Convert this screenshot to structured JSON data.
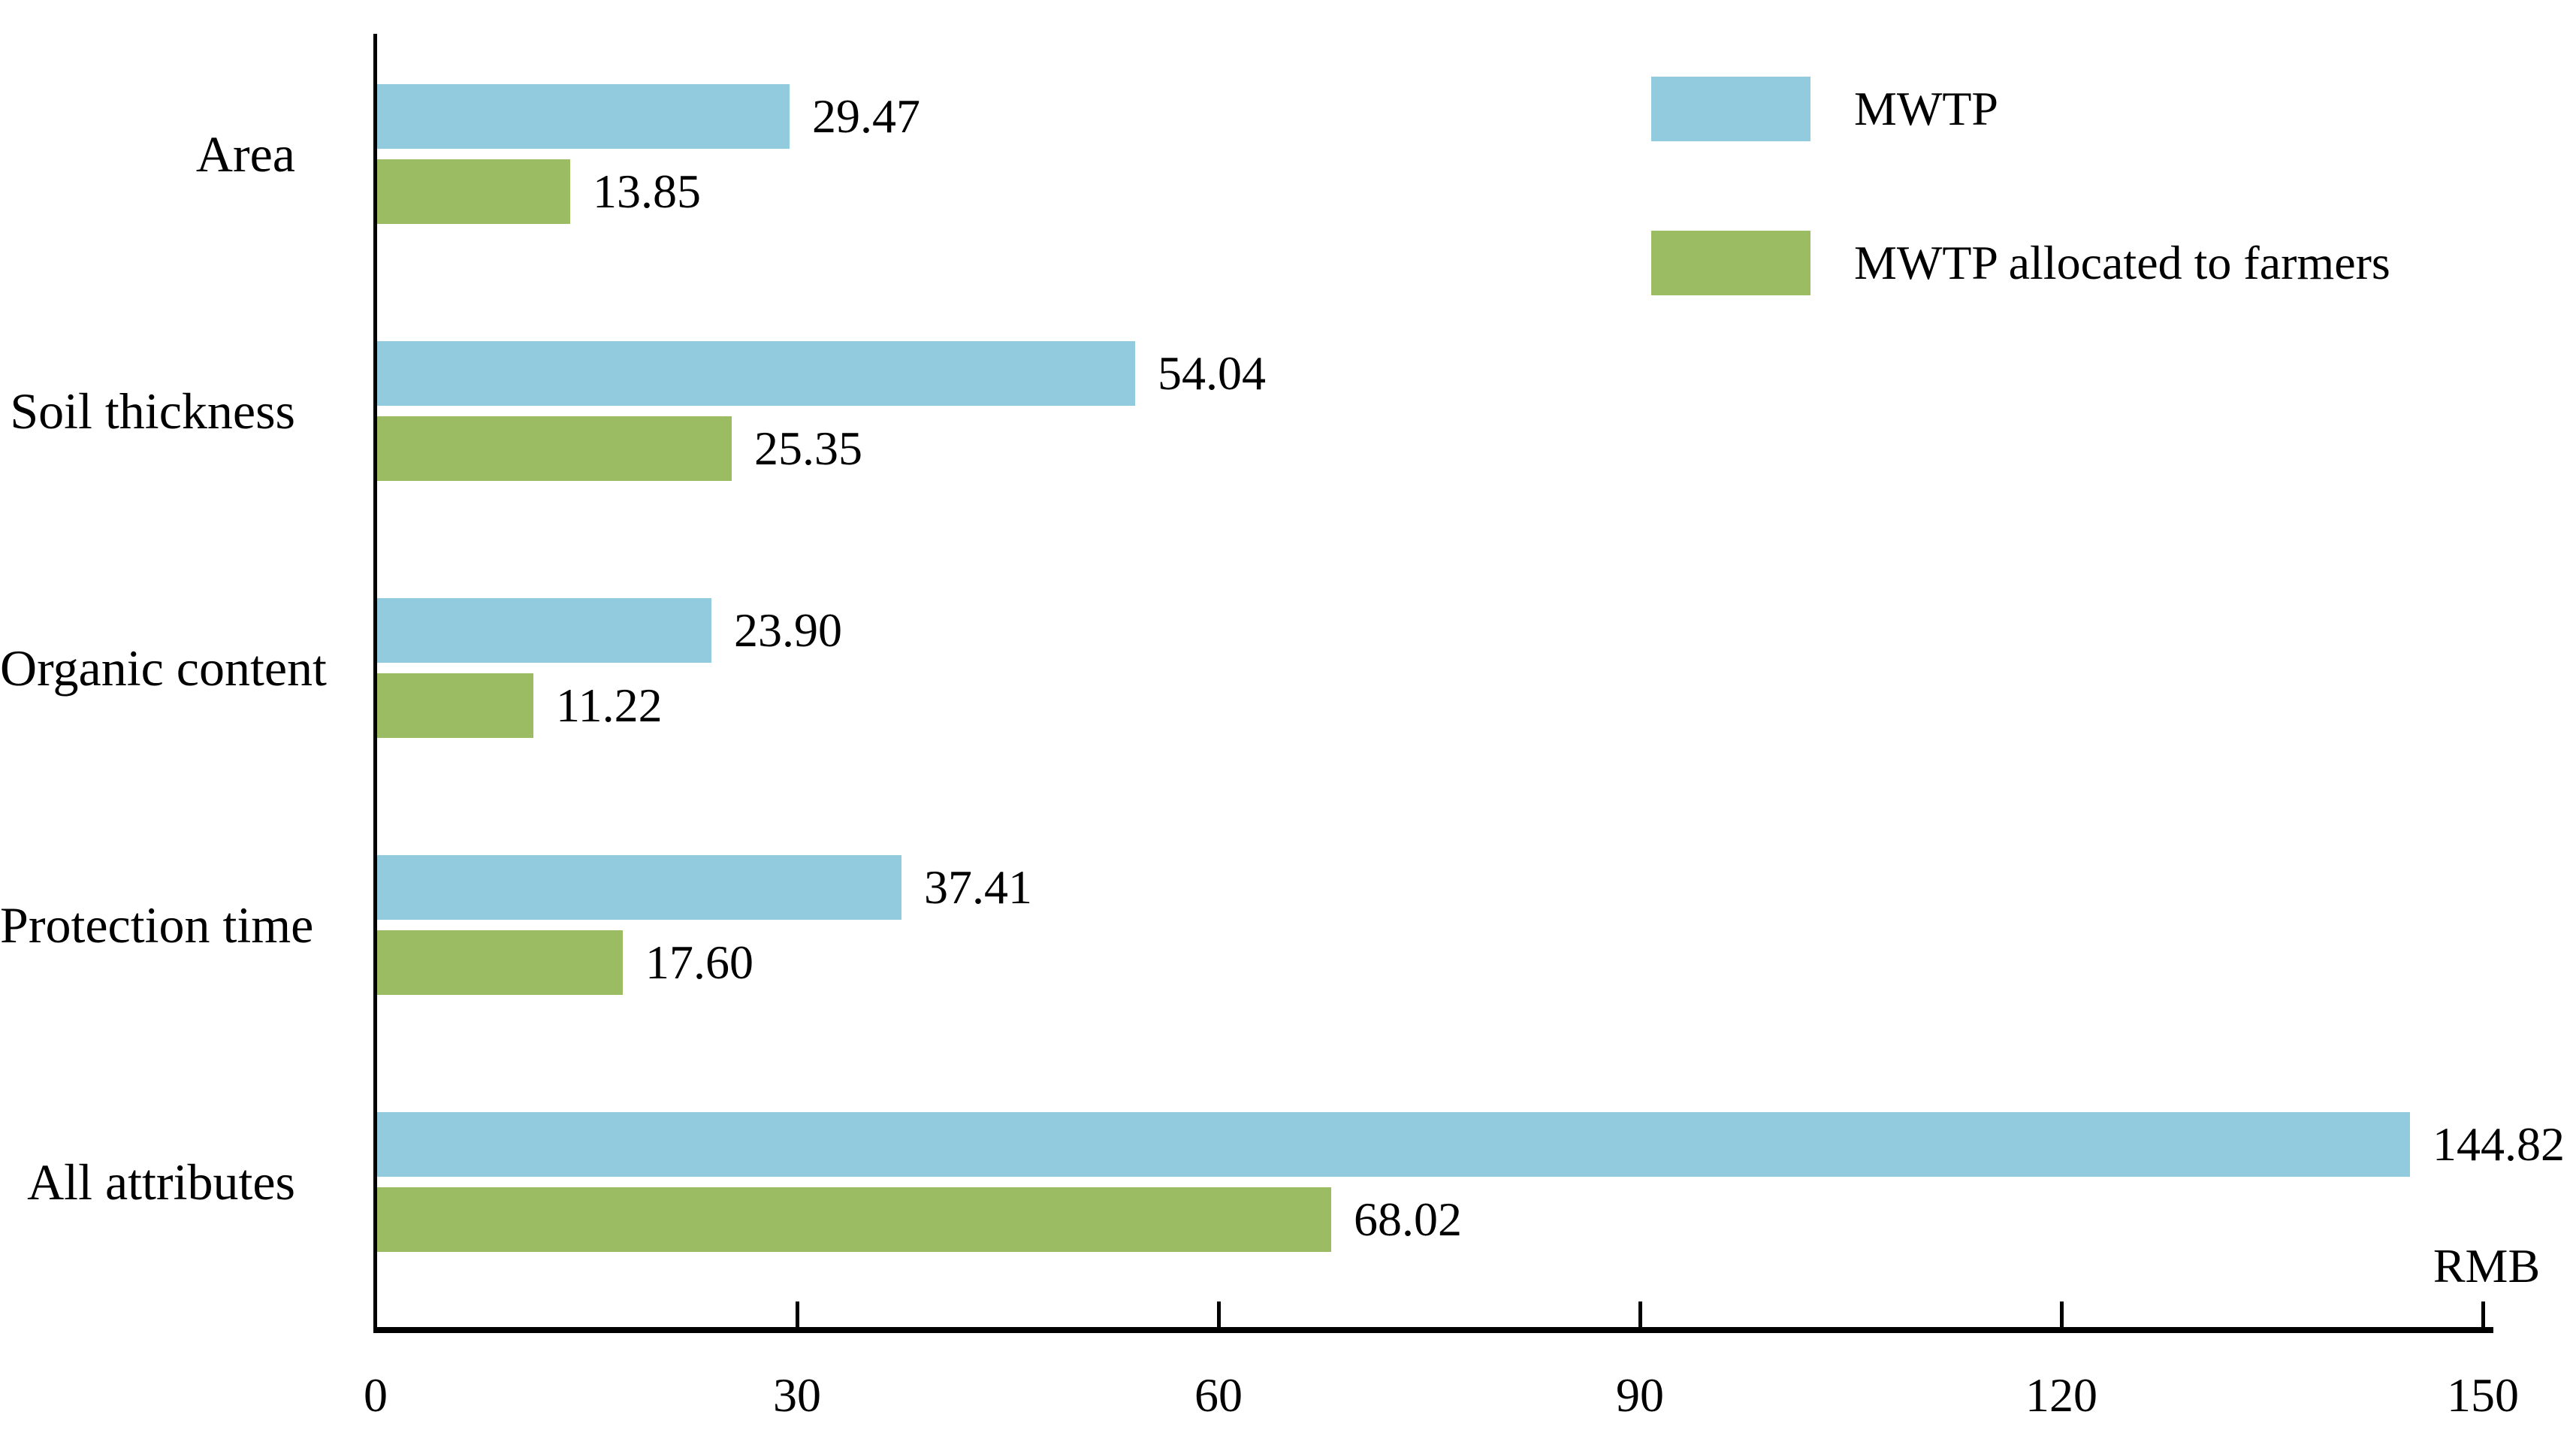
{
  "chart_data": {
    "type": "bar",
    "orientation": "horizontal",
    "title": "",
    "categories": [
      "Area",
      "Soil thickness",
      "Organic content",
      "Protection time",
      "All attributes"
    ],
    "series": [
      {
        "name": "MWTP",
        "color": "#92CBDD",
        "values": [
          29.47,
          54.04,
          23.9,
          37.41,
          144.82
        ],
        "labels": [
          "29.47",
          "54.04",
          "23.90",
          "37.41",
          "144.82"
        ]
      },
      {
        "name": "MWTP allocated to farmers",
        "color": "#9CBC63",
        "values": [
          13.85,
          25.35,
          11.22,
          17.6,
          68.02
        ],
        "labels": [
          "13.85",
          "25.35",
          "11.22",
          "17.60",
          "68.02"
        ]
      }
    ],
    "x_axis": {
      "range": [
        0,
        150
      ],
      "ticks": [
        0,
        30,
        60,
        90,
        120,
        150
      ],
      "tick_labels": [
        "0",
        "30",
        "60",
        "90",
        "120",
        "150"
      ],
      "unit_label": "RMB"
    },
    "legend": {
      "position": "top-right",
      "entries": [
        "MWTP",
        "MWTP allocated to farmers"
      ]
    },
    "grid": false,
    "bar_value_labels_shown": true,
    "colors": {
      "axis": "#000000",
      "text": "#000000",
      "background": "#ffffff"
    }
  }
}
